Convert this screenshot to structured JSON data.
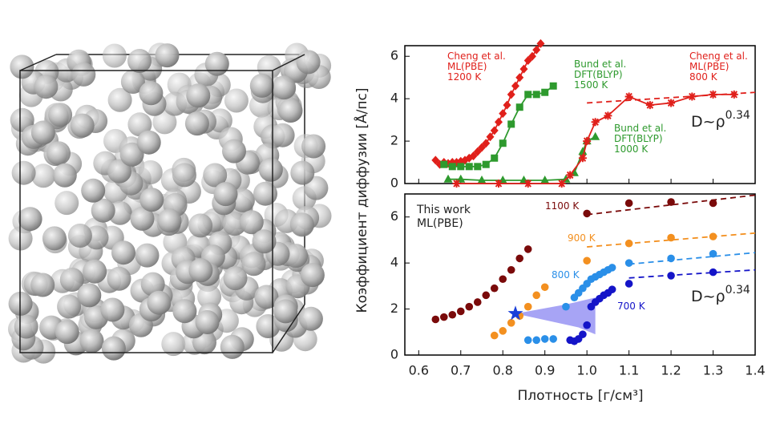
{
  "chart_data": [
    {
      "type": "line",
      "ylabel": "Коэффициент диффузии [Å/пс]",
      "xlim": [
        0.567,
        1.4
      ],
      "ylim": [
        0,
        6.5
      ],
      "xticks": [
        0.6,
        0.7,
        0.8,
        0.9,
        1.0,
        1.1,
        1.2,
        1.3,
        1.4
      ],
      "yticks": [
        0,
        2,
        4,
        6
      ],
      "annotation": {
        "text": "D~ρ",
        "sup": "0.34"
      },
      "series": [
        {
          "label": [
            "Cheng et al.",
            "ML(PBE)",
            "1200 K"
          ],
          "color": "#e0201b",
          "marker": "diamond",
          "connect": true,
          "x": [
            0.64,
            0.65,
            0.66,
            0.67,
            0.68,
            0.69,
            0.7,
            0.71,
            0.72,
            0.73,
            0.74,
            0.75,
            0.76,
            0.77,
            0.78,
            0.79,
            0.8,
            0.81,
            0.82,
            0.83,
            0.84,
            0.85,
            0.86,
            0.87,
            0.88,
            0.89
          ],
          "values": [
            1.1,
            0.9,
            1.0,
            0.95,
            1.0,
            1.0,
            1.05,
            1.1,
            1.2,
            1.3,
            1.5,
            1.7,
            1.9,
            2.2,
            2.5,
            2.9,
            3.3,
            3.7,
            4.2,
            4.6,
            5.0,
            5.4,
            5.8,
            6.0,
            6.3,
            6.6
          ]
        },
        {
          "label": [
            "Bund et al.",
            "DFT(BLYP)",
            "1500 K"
          ],
          "color": "#2e9a2e",
          "marker": "square",
          "connect": true,
          "x": [
            0.66,
            0.68,
            0.7,
            0.72,
            0.74,
            0.76,
            0.78,
            0.8,
            0.82,
            0.84,
            0.86,
            0.88,
            0.9,
            0.92
          ],
          "values": [
            0.9,
            0.8,
            0.8,
            0.8,
            0.8,
            0.9,
            1.2,
            1.9,
            2.8,
            3.6,
            4.2,
            4.2,
            4.3,
            4.6
          ]
        },
        {
          "label": [
            "Bund et al.",
            "DFT(BLYP)",
            "1000 K"
          ],
          "color": "#2e9a2e",
          "marker": "triangle",
          "connect": true,
          "x": [
            0.67,
            0.7,
            0.75,
            0.8,
            0.85,
            0.9,
            0.95,
            0.97,
            0.99,
            1.0,
            1.02
          ],
          "values": [
            0.2,
            0.2,
            0.15,
            0.15,
            0.15,
            0.15,
            0.2,
            0.5,
            1.5,
            2.0,
            2.2
          ]
        },
        {
          "label": [
            "Cheng et al.",
            "ML(PBE)",
            "800 K"
          ],
          "color": "#e0201b",
          "marker": "asterisk",
          "connect": true,
          "x": [
            0.69,
            0.79,
            0.86,
            0.94,
            0.96,
            0.99,
            1.0,
            1.02,
            1.05,
            1.1,
            1.15,
            1.2,
            1.25,
            1.3,
            1.35
          ],
          "values": [
            0,
            0,
            0,
            0,
            0.4,
            1.2,
            2.0,
            2.9,
            3.2,
            4.1,
            3.7,
            3.8,
            4.1,
            4.2,
            4.2
          ]
        },
        {
          "color": "#e0201b",
          "marker": "none",
          "dashed": true,
          "x": [
            1.0,
            1.4
          ],
          "values": [
            3.8,
            4.3
          ]
        }
      ]
    },
    {
      "type": "line",
      "xlabel": "Плотность [г/см³]",
      "xlim": [
        0.567,
        1.4
      ],
      "ylim": [
        0,
        7
      ],
      "xticks": [
        0.6,
        0.7,
        0.8,
        0.9,
        {
          "value": 1.0,
          "label": "1.0"
        },
        1.1,
        1.2,
        1.3,
        1.4
      ],
      "yticks": [
        0,
        2,
        4,
        6
      ],
      "note": [
        "This work",
        "ML(PBE)"
      ],
      "annotation": {
        "text": "D~ρ",
        "sup": "0.34"
      },
      "region": {
        "color": "#8a86f2",
        "x": [
          0.83,
          0.95,
          1.02,
          1.02,
          0.98,
          0.93,
          0.88
        ],
        "values": [
          1.8,
          2.2,
          2.5,
          0.9,
          1.2,
          1.4,
          1.6
        ]
      },
      "star": {
        "color": "#1a3fd9",
        "x": 0.83,
        "value": 1.8
      },
      "series": [
        {
          "label": [
            "1100 K"
          ],
          "color": "#7a0a0a",
          "marker": "circle",
          "x": [
            0.64,
            0.66,
            0.68,
            0.7,
            0.72,
            0.74,
            0.76,
            0.78,
            0.8,
            0.82,
            0.84,
            0.86,
            1.0,
            1.1,
            1.2,
            1.3
          ],
          "values": [
            1.55,
            1.65,
            1.75,
            1.9,
            2.1,
            2.3,
            2.6,
            2.9,
            3.3,
            3.7,
            4.2,
            4.6,
            6.15,
            6.6,
            6.65,
            6.6
          ]
        },
        {
          "label": [
            "900 K"
          ],
          "color": "#f39020",
          "marker": "circle",
          "x": [
            0.78,
            0.8,
            0.82,
            0.84,
            0.86,
            0.88,
            0.9,
            1.0,
            1.1,
            1.2,
            1.3
          ],
          "values": [
            0.85,
            1.05,
            1.4,
            1.7,
            2.1,
            2.6,
            2.95,
            4.1,
            4.85,
            5.1,
            5.15
          ]
        },
        {
          "label": [
            "800 K"
          ],
          "color": "#2a8fe8",
          "marker": "circle",
          "x": [
            0.86,
            0.88,
            0.9,
            0.92,
            0.95,
            0.97,
            0.98,
            0.99,
            1.0,
            1.01,
            1.02,
            1.03,
            1.04,
            1.05,
            1.06,
            1.1,
            1.2,
            1.3
          ],
          "values": [
            0.65,
            0.65,
            0.7,
            0.7,
            2.1,
            2.5,
            2.7,
            2.9,
            3.1,
            3.3,
            3.4,
            3.5,
            3.6,
            3.7,
            3.8,
            4.0,
            4.2,
            4.4
          ]
        },
        {
          "label": [
            "700 K"
          ],
          "color": "#1414c8",
          "marker": "circle",
          "x": [
            0.96,
            0.97,
            0.98,
            0.99,
            1.0,
            1.01,
            1.02,
            1.03,
            1.04,
            1.05,
            1.06,
            1.1,
            1.2,
            1.3
          ],
          "values": [
            0.65,
            0.6,
            0.7,
            0.9,
            1.3,
            2.1,
            2.3,
            2.45,
            2.6,
            2.7,
            2.85,
            3.1,
            3.45,
            3.6
          ]
        },
        {
          "color": "#7a0a0a",
          "marker": "none",
          "dashed": true,
          "x": [
            1.0,
            1.4
          ],
          "values": [
            6.1,
            6.95
          ]
        },
        {
          "color": "#f39020",
          "marker": "none",
          "dashed": true,
          "x": [
            1.0,
            1.4
          ],
          "values": [
            4.7,
            5.3
          ]
        },
        {
          "color": "#2a8fe8",
          "marker": "none",
          "dashed": true,
          "x": [
            1.1,
            1.4
          ],
          "values": [
            3.95,
            4.45
          ]
        },
        {
          "color": "#1414c8",
          "marker": "none",
          "dashed": true,
          "x": [
            1.1,
            1.4
          ],
          "values": [
            3.35,
            3.7
          ]
        }
      ]
    }
  ]
}
